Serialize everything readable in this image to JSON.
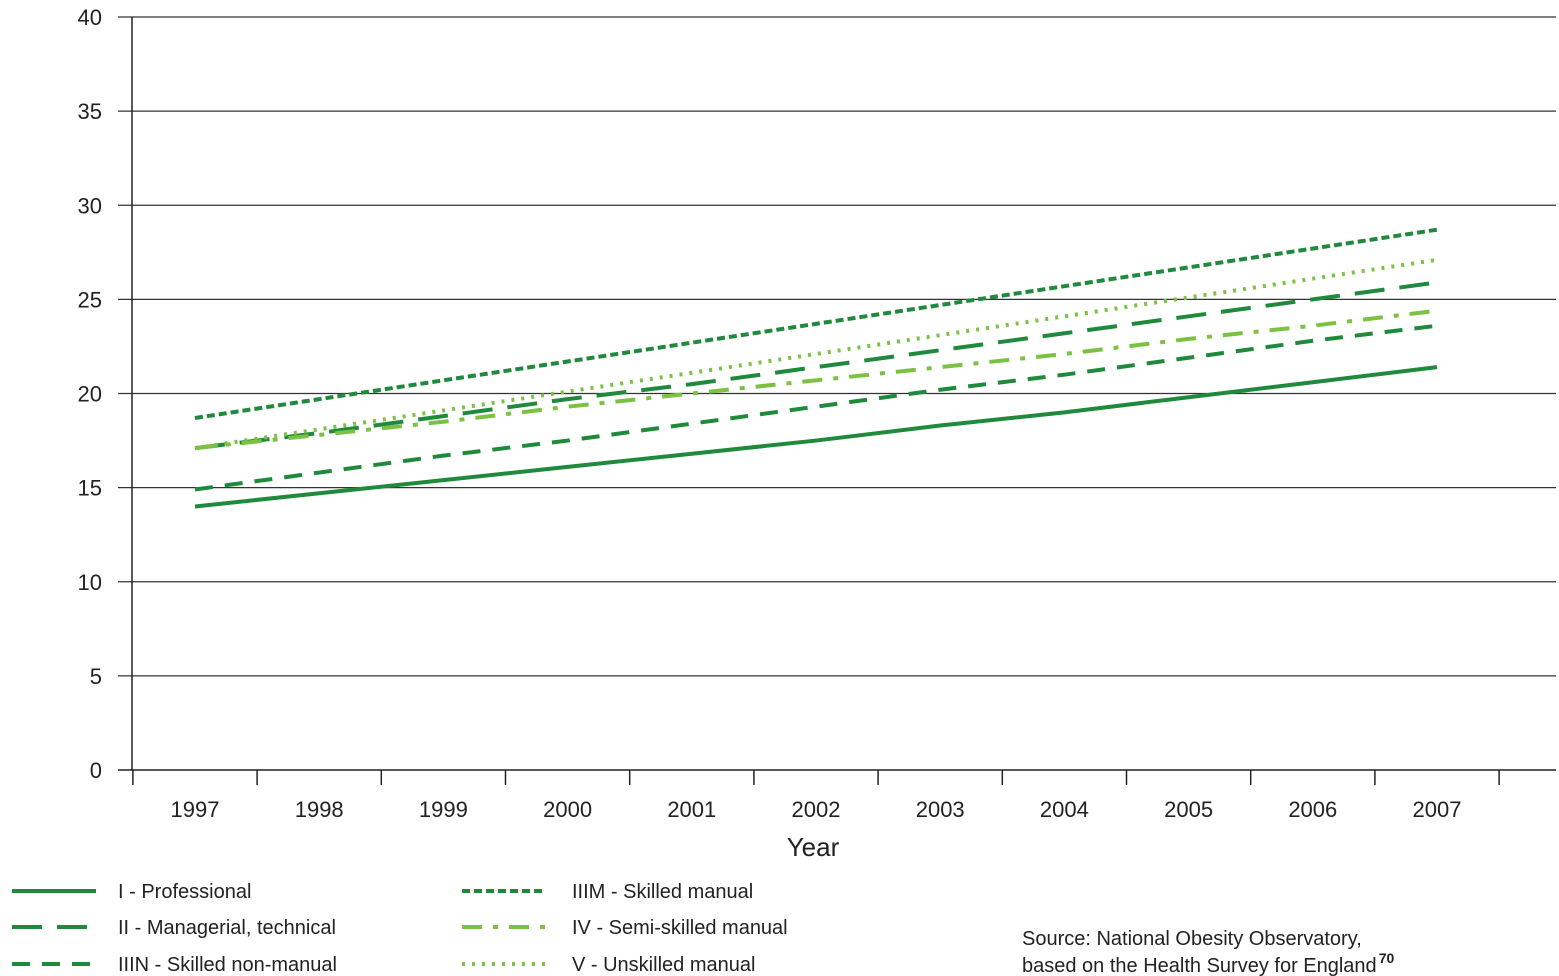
{
  "chart_data": {
    "type": "line",
    "title": "",
    "xlabel": "Year",
    "ylabel": "",
    "x": [
      1997,
      1998,
      1999,
      2000,
      2001,
      2002,
      2003,
      2004,
      2005,
      2006,
      2007
    ],
    "ylim": [
      0,
      40
    ],
    "yticks": [
      0,
      5,
      10,
      15,
      20,
      25,
      30,
      35,
      40
    ],
    "grid": "horizontal",
    "legend_position": "bottom",
    "colors": {
      "dark_green": "#1f8a3c",
      "light_green": "#7cc242",
      "grid": "#333333"
    },
    "series": [
      {
        "name": "I - Professional",
        "style": "solid",
        "color": "#1f8a3c",
        "values": [
          14.0,
          14.7,
          15.4,
          16.1,
          16.8,
          17.5,
          18.3,
          19.0,
          19.8,
          20.6,
          21.4
        ]
      },
      {
        "name": "II - Managerial, technical",
        "style": "longdash",
        "color": "#1f8a3c",
        "values": [
          17.1,
          17.9,
          18.8,
          19.7,
          20.5,
          21.4,
          22.3,
          23.2,
          24.1,
          25.0,
          25.9
        ]
      },
      {
        "name": "IIIN - Skilled non-manual",
        "style": "dash",
        "color": "#1f8a3c",
        "values": [
          14.9,
          15.8,
          16.7,
          17.5,
          18.4,
          19.3,
          20.2,
          21.0,
          21.9,
          22.8,
          23.6
        ]
      },
      {
        "name": "IIIM - Skilled manual",
        "style": "shortdash",
        "color": "#1f8a3c",
        "values": [
          18.7,
          19.7,
          20.7,
          21.7,
          22.7,
          23.7,
          24.7,
          25.7,
          26.7,
          27.7,
          28.7
        ]
      },
      {
        "name": "IV - Semi-skilled manual",
        "style": "dashdot",
        "color": "#7cc242",
        "values": [
          17.1,
          17.8,
          18.5,
          19.3,
          20.0,
          20.7,
          21.4,
          22.1,
          22.9,
          23.6,
          24.4
        ]
      },
      {
        "name": "V - Unskilled manual",
        "style": "dotted",
        "color": "#7cc242",
        "values": [
          17.1,
          18.1,
          19.1,
          20.1,
          21.1,
          22.1,
          23.1,
          24.1,
          25.1,
          26.1,
          27.1
        ]
      }
    ],
    "source_line1": "Source: National Obesity Observatory,",
    "source_line2": "based on the Health Survey for England",
    "source_ref": "70"
  }
}
